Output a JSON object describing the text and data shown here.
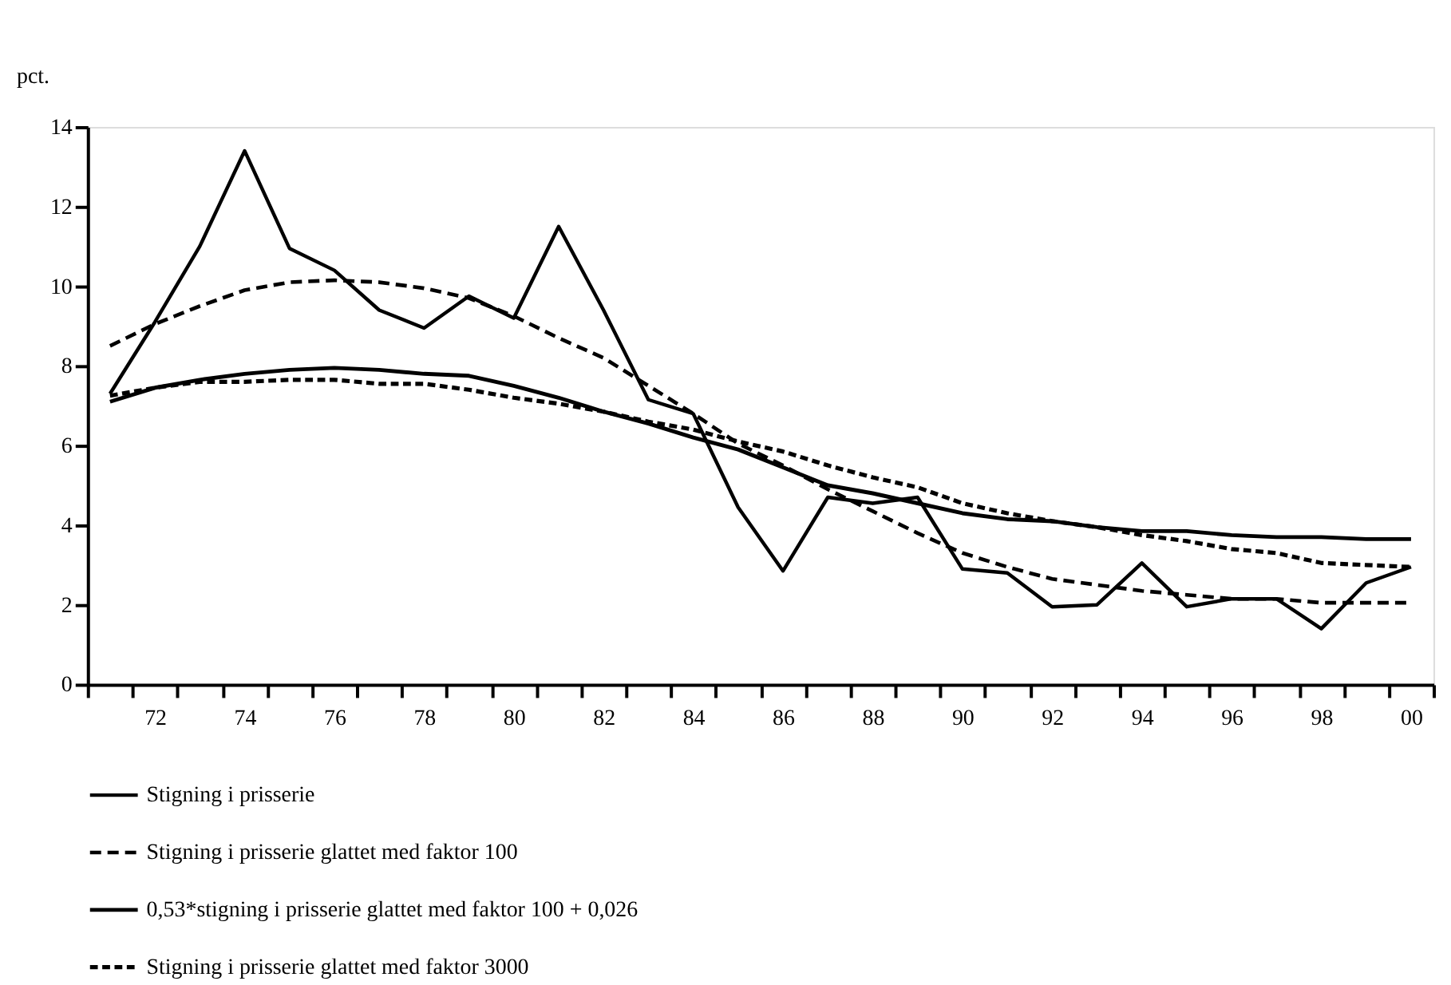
{
  "chart_data": {
    "type": "line",
    "ylabel": "pct.",
    "categories": [
      null,
      "72",
      null,
      "74",
      null,
      "76",
      null,
      "78",
      null,
      "80",
      null,
      "82",
      null,
      "84",
      null,
      "86",
      null,
      "88",
      null,
      "90",
      null,
      "92",
      null,
      "94",
      null,
      "96",
      null,
      "98",
      null,
      "00"
    ],
    "series": [
      {
        "name": "Stigning i prisserie",
        "color": "#000000",
        "line_style": "solid",
        "values": [
          7.3,
          9.1,
          11.0,
          13.4,
          10.95,
          10.4,
          9.4,
          8.95,
          9.75,
          9.2,
          11.5,
          9.4,
          7.15,
          6.8,
          4.45,
          2.85,
          4.7,
          4.55,
          4.7,
          2.9,
          2.8,
          1.95,
          2.0,
          3.05,
          1.95,
          2.15,
          2.15,
          1.4,
          2.55,
          2.95
        ]
      },
      {
        "name": "Stigning i prisserie glattet med faktor 100",
        "color": "#000000",
        "line_style": "dashed",
        "values": [
          8.5,
          9.05,
          9.5,
          9.9,
          10.1,
          10.15,
          10.1,
          9.95,
          9.7,
          9.25,
          8.7,
          8.2,
          7.5,
          6.8,
          6.05,
          5.5,
          4.9,
          4.35,
          3.8,
          3.3,
          2.95,
          2.65,
          2.5,
          2.35,
          2.25,
          2.15,
          2.15,
          2.05,
          2.05,
          2.05
        ]
      },
      {
        "name": "0,53*stigning i prisserie glattet med faktor 100 + 0,026",
        "color": "#000000",
        "line_style": "solid",
        "values": [
          7.1,
          7.45,
          7.65,
          7.8,
          7.9,
          7.95,
          7.9,
          7.8,
          7.75,
          7.5,
          7.2,
          6.85,
          6.55,
          6.2,
          5.9,
          5.45,
          5.0,
          4.8,
          4.55,
          4.3,
          4.15,
          4.1,
          3.95,
          3.85,
          3.85,
          3.75,
          3.7,
          3.7,
          3.65,
          3.65
        ]
      },
      {
        "name": "Stigning i prisserie glattet med faktor 3000",
        "color": "#000000",
        "line_style": "dashed",
        "values": [
          7.25,
          7.45,
          7.6,
          7.6,
          7.65,
          7.65,
          7.55,
          7.55,
          7.4,
          7.2,
          7.05,
          6.85,
          6.6,
          6.4,
          6.1,
          5.85,
          5.5,
          5.2,
          4.95,
          4.55,
          4.3,
          4.1,
          3.95,
          3.75,
          3.6,
          3.4,
          3.3,
          3.05,
          3.0,
          2.95
        ]
      }
    ],
    "ylim": [
      0,
      14
    ],
    "yticks": [
      0,
      2,
      4,
      6,
      8,
      10,
      12,
      14
    ],
    "grid": false,
    "legend": "bottom",
    "marker": "none"
  }
}
